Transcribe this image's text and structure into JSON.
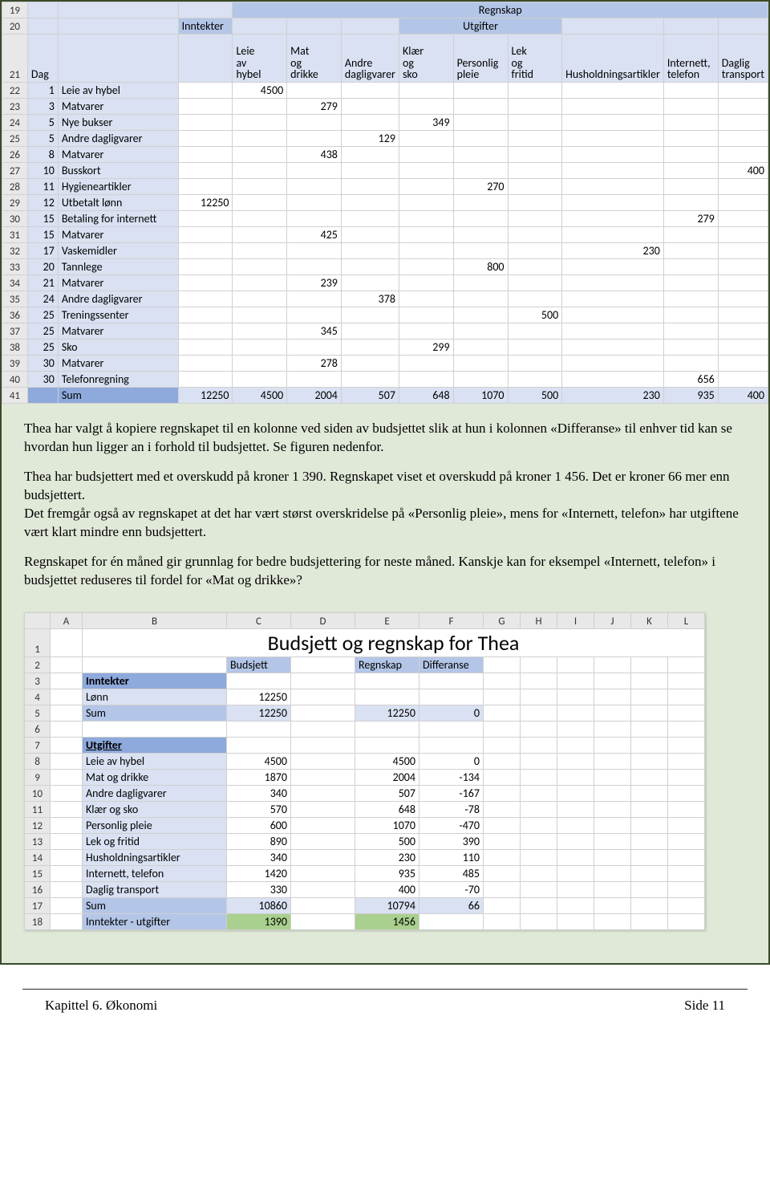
{
  "colors": {
    "page_bg": "#e0e8d8",
    "page_border": "#3a4a2a",
    "sheet_grid": "#d0d0d0",
    "rowhead_bg": "#e8e8e8",
    "blue_light": "#d9e1f2",
    "blue_med": "#b4c6e7",
    "blue_dark": "#8ea9db",
    "green": "#a9d08e"
  },
  "fonts": {
    "body_family": "Times New Roman",
    "body_size_pt": 12,
    "sheet_family": "Calibri",
    "sheet_size_pt": 11,
    "title_size_pt": 20
  },
  "sheet1": {
    "type": "table",
    "row_numbers": [
      19,
      20,
      21,
      22,
      23,
      24,
      25,
      26,
      27,
      28,
      29,
      30,
      31,
      32,
      33,
      34,
      35,
      36,
      37,
      38,
      39,
      40,
      41
    ],
    "header1": {
      "title": "Regnskap"
    },
    "header2": {
      "inntekter": "Inntekter",
      "utgifter": "Utgifter"
    },
    "header3": {
      "dag": "Dag",
      "cols": [
        "",
        "Leie av hybel",
        "Mat og drikke",
        "Andre dagligvarer",
        "Klær og sko",
        "Personlig pleie",
        "Lek og fritid",
        "Husholdningsartikler",
        "Internett, telefon",
        "Daglig transport"
      ]
    },
    "rows": [
      {
        "dag": "1",
        "txt": "Leie av hybel",
        "v": [
          "",
          "4500",
          "",
          "",
          "",
          "",
          "",
          "",
          "",
          ""
        ]
      },
      {
        "dag": "3",
        "txt": "Matvarer",
        "v": [
          "",
          "",
          "279",
          "",
          "",
          "",
          "",
          "",
          "",
          ""
        ]
      },
      {
        "dag": "5",
        "txt": "Nye bukser",
        "v": [
          "",
          "",
          "",
          "",
          "349",
          "",
          "",
          "",
          "",
          ""
        ]
      },
      {
        "dag": "5",
        "txt": "Andre dagligvarer",
        "v": [
          "",
          "",
          "",
          "129",
          "",
          "",
          "",
          "",
          "",
          ""
        ]
      },
      {
        "dag": "8",
        "txt": "Matvarer",
        "v": [
          "",
          "",
          "438",
          "",
          "",
          "",
          "",
          "",
          "",
          ""
        ]
      },
      {
        "dag": "10",
        "txt": "Busskort",
        "v": [
          "",
          "",
          "",
          "",
          "",
          "",
          "",
          "",
          "",
          "400"
        ]
      },
      {
        "dag": "11",
        "txt": "Hygieneartikler",
        "v": [
          "",
          "",
          "",
          "",
          "",
          "270",
          "",
          "",
          "",
          ""
        ]
      },
      {
        "dag": "12",
        "txt": "Utbetalt lønn",
        "v": [
          "12250",
          "",
          "",
          "",
          "",
          "",
          "",
          "",
          "",
          ""
        ]
      },
      {
        "dag": "15",
        "txt": "Betaling for internett",
        "v": [
          "",
          "",
          "",
          "",
          "",
          "",
          "",
          "",
          "279",
          ""
        ]
      },
      {
        "dag": "15",
        "txt": "Matvarer",
        "v": [
          "",
          "",
          "425",
          "",
          "",
          "",
          "",
          "",
          "",
          ""
        ]
      },
      {
        "dag": "17",
        "txt": "Vaskemidler",
        "v": [
          "",
          "",
          "",
          "",
          "",
          "",
          "",
          "230",
          "",
          ""
        ]
      },
      {
        "dag": "20",
        "txt": "Tannlege",
        "v": [
          "",
          "",
          "",
          "",
          "",
          "800",
          "",
          "",
          "",
          ""
        ]
      },
      {
        "dag": "21",
        "txt": "Matvarer",
        "v": [
          "",
          "",
          "239",
          "",
          "",
          "",
          "",
          "",
          "",
          ""
        ]
      },
      {
        "dag": "24",
        "txt": "Andre dagligvarer",
        "v": [
          "",
          "",
          "",
          "378",
          "",
          "",
          "",
          "",
          "",
          ""
        ]
      },
      {
        "dag": "25",
        "txt": "Treningssenter",
        "v": [
          "",
          "",
          "",
          "",
          "",
          "",
          "500",
          "",
          "",
          ""
        ]
      },
      {
        "dag": "25",
        "txt": "Matvarer",
        "v": [
          "",
          "",
          "345",
          "",
          "",
          "",
          "",
          "",
          "",
          ""
        ]
      },
      {
        "dag": "25",
        "txt": "Sko",
        "v": [
          "",
          "",
          "",
          "",
          "299",
          "",
          "",
          "",
          "",
          ""
        ]
      },
      {
        "dag": "30",
        "txt": "Matvarer",
        "v": [
          "",
          "",
          "278",
          "",
          "",
          "",
          "",
          "",
          "",
          ""
        ]
      },
      {
        "dag": "30",
        "txt": "Telefonregning",
        "v": [
          "",
          "",
          "",
          "",
          "",
          "",
          "",
          "",
          "656",
          ""
        ]
      }
    ],
    "sum": {
      "label": "Sum",
      "v": [
        "12250",
        "4500",
        "2004",
        "507",
        "648",
        "1070",
        "500",
        "230",
        "935",
        "400"
      ]
    }
  },
  "body": {
    "p1": "Thea har valgt å kopiere regnskapet til en kolonne ved siden av budsjettet slik at hun i kolonnen «Differanse» til enhver tid kan se hvordan hun ligger an i forhold til budsjettet. Se figuren nedenfor.",
    "p2": "Thea har budsjettert med et overskudd på kroner 1 390. Regnskapet viset et overskudd på kroner 1 456. Det er kroner 66 mer enn budsjettert.",
    "p3": "Det fremgår også av regnskapet at det har vært størst overskridelse på «Personlig pleie», mens for «Internett, telefon» har utgiftene vært klart mindre enn budsjettert.",
    "p4": "Regnskapet for én måned gir grunnlag for bedre budsjettering for neste måned. Kanskje kan for eksempel «Internett, telefon» i budsjettet reduseres til fordel for «Mat og drikke»?"
  },
  "sheet2": {
    "type": "table",
    "col_letters": [
      "A",
      "B",
      "C",
      "D",
      "E",
      "F",
      "G",
      "H",
      "I",
      "J",
      "K",
      "L"
    ],
    "row_numbers": [
      1,
      2,
      3,
      4,
      5,
      6,
      7,
      8,
      9,
      10,
      11,
      12,
      13,
      14,
      15,
      16,
      17,
      18
    ],
    "title": "Budsjett og regnskap for Thea",
    "header": {
      "budsjett": "Budsjett",
      "regnskap": "Regnskap",
      "diff": "Differanse"
    },
    "section1": "Inntekter",
    "row_lonn": {
      "label": "Lønn",
      "b": "12250",
      "r": "",
      "d": ""
    },
    "row_sum_in": {
      "label": "Sum",
      "b": "12250",
      "r": "12250",
      "d": "0"
    },
    "section2": "Utgifter",
    "rows": [
      {
        "label": "Leie av hybel",
        "b": "4500",
        "r": "4500",
        "d": "0"
      },
      {
        "label": "Mat og drikke",
        "b": "1870",
        "r": "2004",
        "d": "-134"
      },
      {
        "label": "Andre dagligvarer",
        "b": "340",
        "r": "507",
        "d": "-167"
      },
      {
        "label": "Klær og sko",
        "b": "570",
        "r": "648",
        "d": "-78"
      },
      {
        "label": "Personlig pleie",
        "b": "600",
        "r": "1070",
        "d": "-470"
      },
      {
        "label": "Lek og fritid",
        "b": "890",
        "r": "500",
        "d": "390"
      },
      {
        "label": "Husholdningsartikler",
        "b": "340",
        "r": "230",
        "d": "110"
      },
      {
        "label": "Internett, telefon",
        "b": "1420",
        "r": "935",
        "d": "485"
      },
      {
        "label": "Daglig transport",
        "b": "330",
        "r": "400",
        "d": "-70"
      }
    ],
    "sum_ut": {
      "label": "Sum",
      "b": "10860",
      "r": "10794",
      "d": "66"
    },
    "net": {
      "label": "Inntekter - utgifter",
      "b": "1390",
      "r": "1456",
      "d": ""
    }
  },
  "footer": {
    "left": "Kapittel 6. Økonomi",
    "right": "Side 11"
  }
}
